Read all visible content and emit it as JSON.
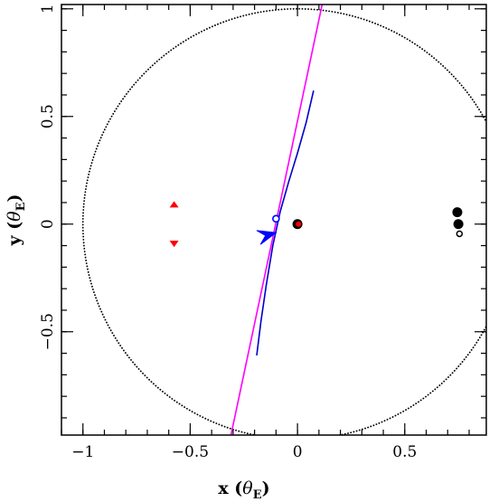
{
  "chart_data": {
    "type": "scatter",
    "title": "",
    "xlabel": {
      "main": "x (",
      "symbol": "θ",
      "sub": "E",
      "close": ")"
    },
    "ylabel": {
      "main": "y (",
      "symbol": "θ",
      "sub": "E",
      "close": ")"
    },
    "xlim": [
      -1.1,
      0.88
    ],
    "ylim": [
      -0.98,
      1.02
    ],
    "xticks": [
      {
        "value": -1,
        "label": "−1"
      },
      {
        "value": -0.5,
        "label": "−0.5"
      },
      {
        "value": 0,
        "label": "0"
      },
      {
        "value": 0.5,
        "label": "0.5"
      }
    ],
    "yticks": [
      {
        "value": -0.5,
        "label": "−0.5"
      },
      {
        "value": 0,
        "label": "0"
      },
      {
        "value": 0.5,
        "label": "0.5"
      },
      {
        "value": 1,
        "label": "1"
      }
    ],
    "grid": false,
    "einstein_ring": {
      "center": [
        0,
        0
      ],
      "radius": 1.0,
      "color": "#000000",
      "style": "dotted"
    },
    "source_trajectory": {
      "color": "#ff00ff",
      "points": [
        [
          -0.31,
          -0.98
        ],
        [
          0.115,
          1.02
        ]
      ]
    },
    "caustic_curve": {
      "color": "#0000cc",
      "points": [
        [
          -0.19,
          -0.61
        ],
        [
          -0.17,
          -0.45
        ],
        [
          -0.145,
          -0.28
        ],
        [
          -0.115,
          -0.1
        ],
        [
          -0.08,
          0.06
        ],
        [
          -0.04,
          0.2
        ],
        [
          0.0,
          0.33
        ],
        [
          0.04,
          0.47
        ],
        [
          0.075,
          0.62
        ]
      ]
    },
    "source": {
      "color": "#0000ff",
      "arrow_tip": [
        -0.1,
        -0.04
      ],
      "arrow_tail": [
        -0.155,
        -0.055
      ],
      "circle": [
        -0.1,
        0.025
      ]
    },
    "lens_components": {
      "color": "#000000",
      "filled": [
        [
          0.0,
          0.0
        ],
        [
          0.745,
          0.055
        ],
        [
          0.75,
          0.0
        ]
      ],
      "open": [
        [
          0.755,
          -0.045
        ]
      ]
    },
    "red_markers": {
      "color": "#ff0000",
      "points": [
        {
          "x": -0.575,
          "y": 0.09,
          "dir": "up"
        },
        {
          "x": -0.575,
          "y": -0.09,
          "dir": "down"
        },
        {
          "x": 0.005,
          "y": 0.0,
          "dir": "dot"
        }
      ]
    }
  }
}
